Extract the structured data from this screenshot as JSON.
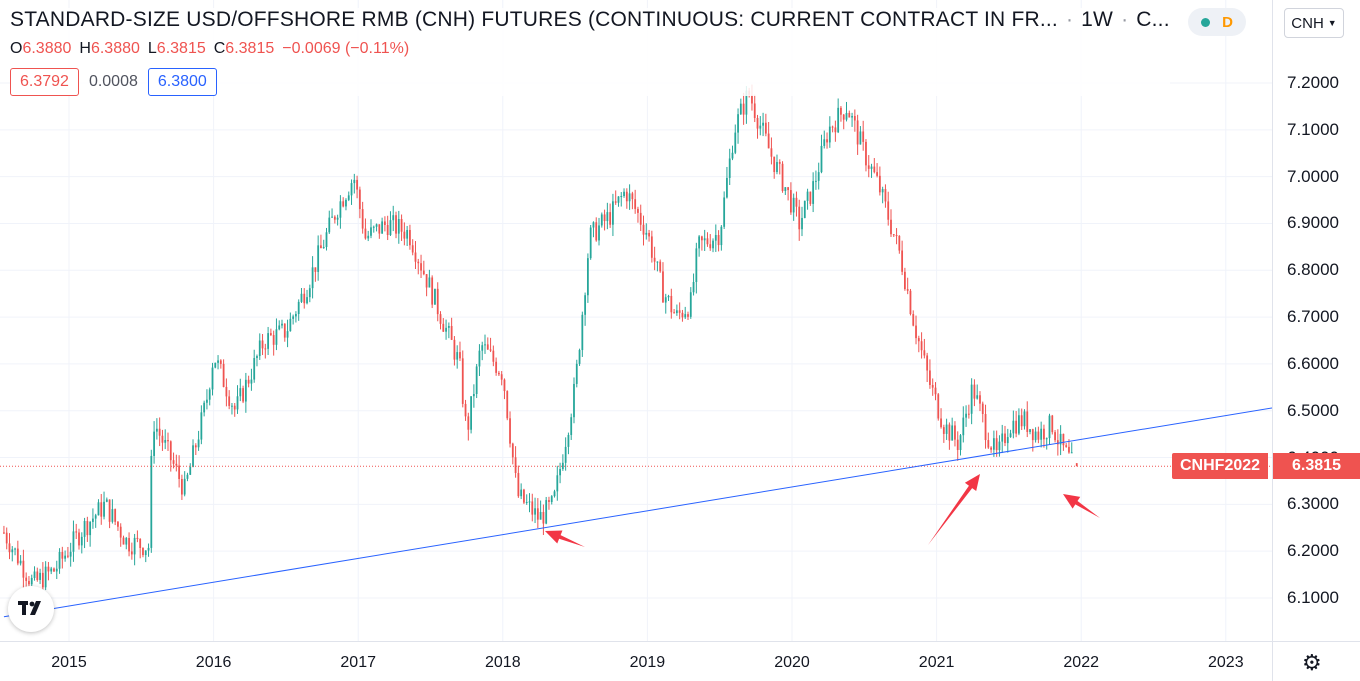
{
  "header": {
    "title": "STANDARD-SIZE USD/OFFSHORE RMB (CNH) FUTURES (CONTINUOUS: CURRENT CONTRACT IN FR...",
    "interval": "1W",
    "exchange": "C...",
    "market_status": "D",
    "currency": "CNH"
  },
  "ohlc": {
    "o_label": "O",
    "o": "6.3880",
    "h_label": "H",
    "h": "6.3880",
    "l_label": "L",
    "l": "6.3815",
    "c_label": "C",
    "c": "6.3815",
    "change": "−0.0069 (−0.11%)"
  },
  "quote": {
    "bid": "6.3792",
    "spread": "0.0008",
    "ask": "6.3800"
  },
  "last_price": {
    "symbol": "CNHF2022",
    "value": "6.3815"
  },
  "colors": {
    "up": "#26a69a",
    "down": "#ef5350",
    "trendline": "#2962ff",
    "arrow": "#f23645",
    "grid": "#f0f3fa",
    "price_line": "#ef5350"
  },
  "icons": {
    "logo": "tradingview-logo-icon",
    "settings": "gear-icon",
    "dropdown": "chevron-down-icon"
  },
  "chart_data": {
    "type": "candlestick",
    "interval": "1W",
    "ylim": [
      6.02,
      7.28
    ],
    "y_ticks": [
      "6.1000",
      "6.2000",
      "6.3000",
      "6.4000",
      "6.5000",
      "6.6000",
      "6.7000",
      "6.8000",
      "6.9000",
      "7.0000",
      "7.1000",
      "7.2000"
    ],
    "x_ticks": [
      "2015",
      "2016",
      "2017",
      "2018",
      "2019",
      "2020",
      "2021",
      "2022",
      "2023"
    ],
    "x_range": [
      2014.55,
      2023.4
    ],
    "grid": true,
    "series": [
      {
        "name": "CNHF2022",
        "ohlc_path": [
          [
            2014.55,
            6.24
          ],
          [
            2014.75,
            6.13
          ],
          [
            2014.9,
            6.16
          ],
          [
            2015.1,
            6.25
          ],
          [
            2015.25,
            6.3
          ],
          [
            2015.4,
            6.22
          ],
          [
            2015.55,
            6.21
          ],
          [
            2015.58,
            6.48
          ],
          [
            2015.7,
            6.4
          ],
          [
            2015.8,
            6.33
          ],
          [
            2015.95,
            6.52
          ],
          [
            2016.0,
            6.62
          ],
          [
            2016.15,
            6.5
          ],
          [
            2016.35,
            6.65
          ],
          [
            2016.5,
            6.67
          ],
          [
            2016.65,
            6.77
          ],
          [
            2016.85,
            6.93
          ],
          [
            2016.97,
            7.0
          ],
          [
            2017.05,
            6.87
          ],
          [
            2017.2,
            6.9
          ],
          [
            2017.35,
            6.88
          ],
          [
            2017.55,
            6.72
          ],
          [
            2017.7,
            6.6
          ],
          [
            2017.75,
            6.45
          ],
          [
            2017.85,
            6.64
          ],
          [
            2018.0,
            6.58
          ],
          [
            2018.1,
            6.32
          ],
          [
            2018.25,
            6.27
          ],
          [
            2018.35,
            6.3
          ],
          [
            2018.5,
            6.55
          ],
          [
            2018.6,
            6.87
          ],
          [
            2018.75,
            6.92
          ],
          [
            2018.85,
            6.97
          ],
          [
            2019.0,
            6.88
          ],
          [
            2019.1,
            6.76
          ],
          [
            2019.2,
            6.7
          ],
          [
            2019.3,
            6.73
          ],
          [
            2019.35,
            6.85
          ],
          [
            2019.5,
            6.88
          ],
          [
            2019.6,
            7.1
          ],
          [
            2019.7,
            7.18
          ],
          [
            2019.85,
            7.05
          ],
          [
            2019.95,
            6.98
          ],
          [
            2020.05,
            6.9
          ],
          [
            2020.15,
            6.98
          ],
          [
            2020.25,
            7.1
          ],
          [
            2020.38,
            7.15
          ],
          [
            2020.5,
            7.05
          ],
          [
            2020.6,
            6.98
          ],
          [
            2020.75,
            6.83
          ],
          [
            2020.85,
            6.68
          ],
          [
            2020.95,
            6.56
          ],
          [
            2021.05,
            6.47
          ],
          [
            2021.15,
            6.43
          ],
          [
            2021.25,
            6.55
          ],
          [
            2021.35,
            6.45
          ],
          [
            2021.42,
            6.4
          ],
          [
            2021.5,
            6.47
          ],
          [
            2021.6,
            6.48
          ],
          [
            2021.7,
            6.45
          ],
          [
            2021.8,
            6.47
          ],
          [
            2021.85,
            6.43
          ],
          [
            2021.95,
            6.38
          ]
        ]
      }
    ],
    "last_bar": {
      "open": 6.388,
      "high": 6.388,
      "low": 6.3815,
      "close": 6.3815
    },
    "trendline": {
      "from": [
        2014.55,
        6.06
      ],
      "to": [
        2023.4,
        6.51
      ]
    },
    "annotations": [
      {
        "type": "arrow",
        "target": [
          2018.25,
          6.255
        ]
      },
      {
        "type": "arrow",
        "target": [
          2021.45,
          6.375
        ]
      },
      {
        "type": "arrow",
        "target": [
          2021.98,
          6.335
        ]
      }
    ]
  }
}
